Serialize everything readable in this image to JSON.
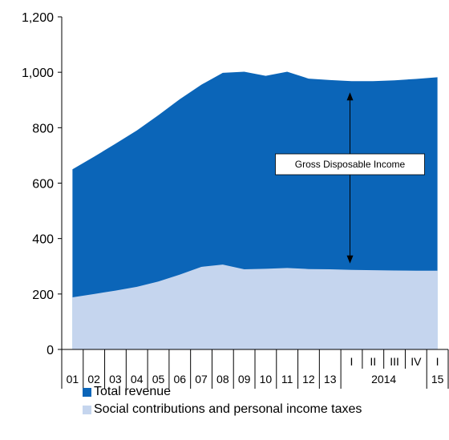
{
  "chart_data": {
    "type": "area",
    "stacked": false,
    "ylim": [
      0,
      1200
    ],
    "yticks": [
      "0",
      "200",
      "400",
      "600",
      "800",
      "1,000",
      "1,200"
    ],
    "categories": [
      "01",
      "02",
      "03",
      "04",
      "05",
      "06",
      "07",
      "08",
      "09",
      "10",
      "11",
      "12",
      "13",
      "I",
      "II",
      "III",
      "IV",
      "I"
    ],
    "year_groups": [
      {
        "label": "2014",
        "from": 13,
        "to": 16
      },
      {
        "label": "15",
        "from": 17,
        "to": 17
      }
    ],
    "series": [
      {
        "name": "Total revenue",
        "color": "#0b65b8",
        "values": [
          650,
          695,
          742,
          790,
          845,
          903,
          955,
          998,
          1002,
          987,
          1002,
          977,
          972,
          968,
          968,
          971,
          976,
          982
        ]
      },
      {
        "name": "Social contributions and personal income taxes",
        "color": "#c5d5ee",
        "values": [
          188,
          200,
          212,
          226,
          245,
          270,
          298,
          306,
          289,
          291,
          294,
          290,
          289,
          287,
          286,
          285,
          284,
          284
        ]
      }
    ],
    "annotation": {
      "text": "Gross Disposable Income",
      "category_index": 13,
      "from_series": 1,
      "to_series": 0
    },
    "legend_position": "bottom-left",
    "grid": false
  }
}
